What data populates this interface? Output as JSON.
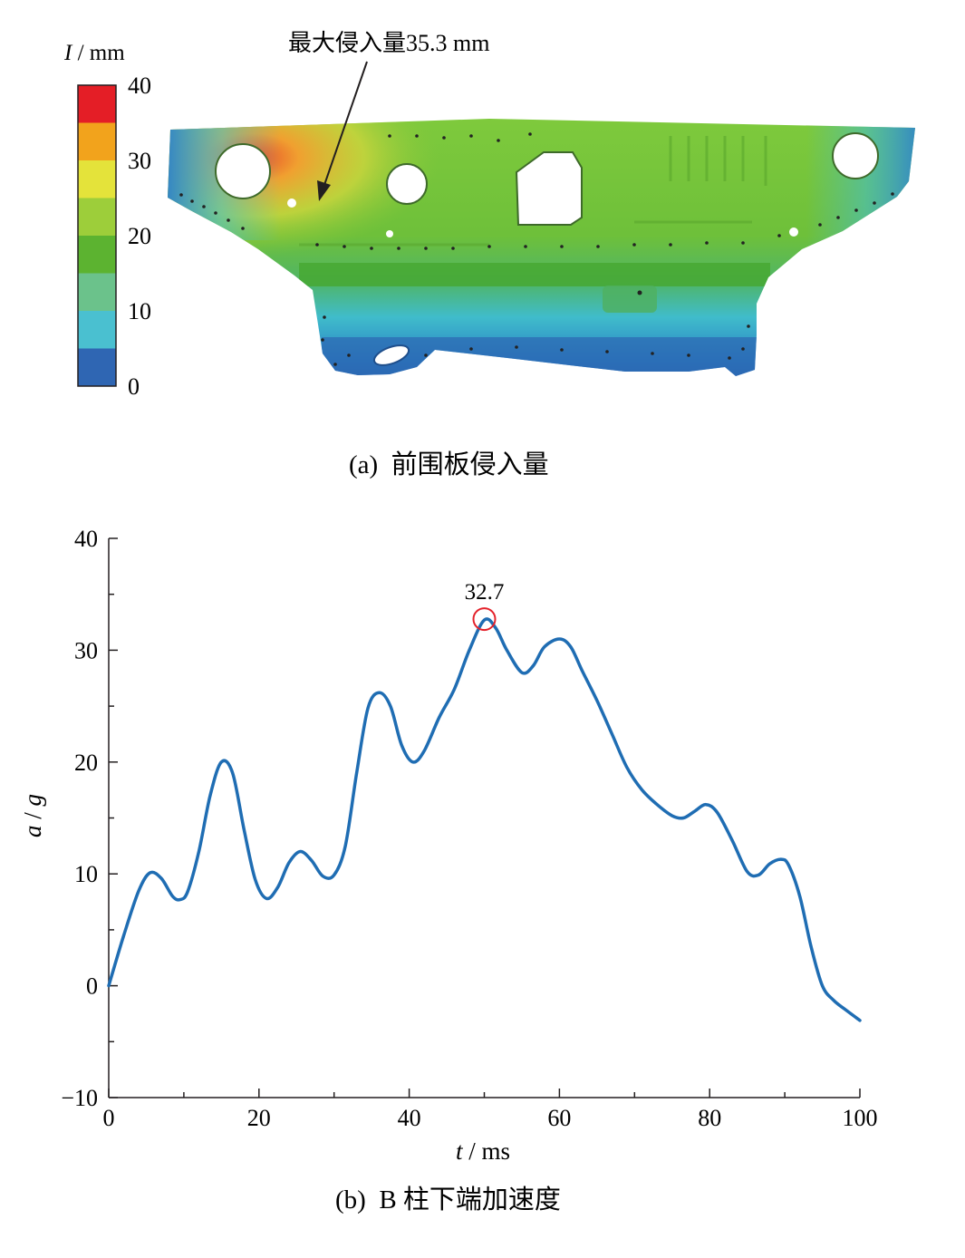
{
  "panel_a": {
    "caption": "(a)  前围板侵入量",
    "legend_title_var": "I",
    "legend_title_unit": " / mm",
    "legend_ticks": [
      "40",
      "30",
      "20",
      "10",
      "0"
    ],
    "legend_colors": [
      "#e41e26",
      "#f2a31c",
      "#e4e33a",
      "#9dce3a",
      "#5cb330",
      "#6bc28b",
      "#4ac0d0",
      "#2f66b3"
    ],
    "annotation": "最大侵入量35.3 mm",
    "max_value": 35.3
  },
  "panel_b": {
    "caption": "(b)  B 柱下端加速度",
    "peak_label": "32.7",
    "xlabel_var": "t",
    "xlabel_unit": " / ms",
    "ylabel_var": "a",
    "ylabel_sep": " / ",
    "ylabel_unit": "g"
  },
  "chart_data": {
    "type": "line",
    "x_ticks": [
      "0",
      "20",
      "40",
      "60",
      "80",
      "100"
    ],
    "y_ticks": [
      "−10",
      "0",
      "10",
      "20",
      "30",
      "40"
    ],
    "xlim": [
      0,
      100
    ],
    "ylim": [
      -10,
      40
    ],
    "grid": false,
    "peak": {
      "x": 50,
      "y": 32.7
    },
    "series": [
      {
        "color": "#1f6db3",
        "points": [
          [
            0,
            0
          ],
          [
            2,
            4.5
          ],
          [
            4,
            8.5
          ],
          [
            5.5,
            10.1
          ],
          [
            7,
            9.6
          ],
          [
            8.5,
            8.0
          ],
          [
            9.5,
            7.7
          ],
          [
            10.5,
            8.4
          ],
          [
            12,
            12
          ],
          [
            13.5,
            17
          ],
          [
            15,
            20
          ],
          [
            16.5,
            19
          ],
          [
            18,
            14
          ],
          [
            19.5,
            9.5
          ],
          [
            21,
            7.8
          ],
          [
            22.5,
            8.8
          ],
          [
            24,
            11
          ],
          [
            25.5,
            12
          ],
          [
            27,
            11.2
          ],
          [
            28.5,
            9.8
          ],
          [
            30,
            9.9
          ],
          [
            31.5,
            12.5
          ],
          [
            33,
            19
          ],
          [
            34.5,
            24.8
          ],
          [
            36,
            26.2
          ],
          [
            37.5,
            25
          ],
          [
            39,
            21.5
          ],
          [
            40.5,
            20
          ],
          [
            42,
            21
          ],
          [
            44,
            24
          ],
          [
            46,
            26.5
          ],
          [
            48,
            30
          ],
          [
            50,
            32.7
          ],
          [
            51.5,
            32
          ],
          [
            53,
            30
          ],
          [
            55,
            28
          ],
          [
            56.5,
            28.6
          ],
          [
            58,
            30.3
          ],
          [
            60,
            31
          ],
          [
            61.5,
            30.3
          ],
          [
            63,
            28.2
          ],
          [
            65,
            25.5
          ],
          [
            67,
            22.5
          ],
          [
            69,
            19.5
          ],
          [
            71,
            17.5
          ],
          [
            73,
            16.2
          ],
          [
            75,
            15.2
          ],
          [
            76.5,
            15
          ],
          [
            78,
            15.6
          ],
          [
            79.5,
            16.2
          ],
          [
            81,
            15.5
          ],
          [
            83,
            13
          ],
          [
            85,
            10.2
          ],
          [
            86.5,
            9.9
          ],
          [
            88,
            10.9
          ],
          [
            89.5,
            11.3
          ],
          [
            90.5,
            10.8
          ],
          [
            92,
            8
          ],
          [
            93.5,
            3.5
          ],
          [
            95,
            0
          ],
          [
            96.5,
            -1.3
          ],
          [
            98,
            -2.1
          ],
          [
            100,
            -3.1
          ]
        ]
      }
    ]
  }
}
